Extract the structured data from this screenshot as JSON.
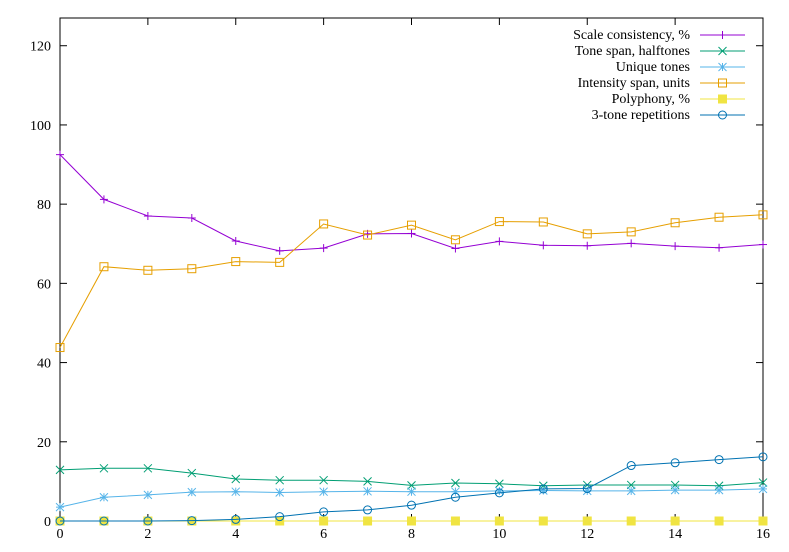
{
  "chart_data": {
    "type": "line",
    "title": "",
    "xlabel": "",
    "ylabel": "",
    "xlim": [
      0,
      16
    ],
    "ylim": [
      0,
      127
    ],
    "xticks": [
      0,
      2,
      4,
      6,
      8,
      10,
      12,
      14,
      16
    ],
    "yticks": [
      0,
      20,
      40,
      60,
      80,
      100,
      120
    ],
    "grid": false,
    "legend_position": "top-right",
    "x": [
      0,
      1,
      2,
      3,
      4,
      5,
      6,
      7,
      8,
      9,
      10,
      11,
      12,
      13,
      14,
      15,
      16
    ],
    "series": [
      {
        "name": "Scale consistency, %",
        "color": "#9400d3",
        "marker": "plus",
        "values": [
          92.5,
          81.2,
          77.0,
          76.5,
          70.7,
          68.2,
          68.9,
          72.5,
          72.6,
          68.8,
          70.6,
          69.6,
          69.5,
          70.1,
          69.4,
          69.0,
          69.8
        ]
      },
      {
        "name": "Tone span, halftones",
        "color": "#009e73",
        "marker": "cross",
        "values": [
          12.9,
          13.3,
          13.3,
          12.1,
          10.6,
          10.3,
          10.3,
          10.0,
          9.0,
          9.6,
          9.4,
          8.9,
          9.1,
          9.1,
          9.1,
          8.9,
          9.7
        ]
      },
      {
        "name": "Unique tones",
        "color": "#56b4e9",
        "marker": "star",
        "values": [
          3.5,
          6.0,
          6.6,
          7.3,
          7.4,
          7.2,
          7.4,
          7.5,
          7.4,
          7.4,
          7.6,
          7.7,
          7.6,
          7.6,
          7.8,
          7.8,
          8.1
        ]
      },
      {
        "name": "Intensity span, units",
        "color": "#e69f00",
        "marker": "box",
        "values": [
          43.8,
          64.2,
          63.3,
          63.7,
          65.5,
          65.3,
          75.0,
          72.2,
          74.7,
          71.0,
          75.6,
          75.5,
          72.5,
          73.0,
          75.3,
          76.7,
          77.3
        ]
      },
      {
        "name": "Polyphony, %",
        "color": "#f0e442",
        "marker": "filledbox",
        "values": [
          0,
          0,
          0,
          0,
          0,
          0,
          0,
          0,
          0,
          0,
          0,
          0,
          0,
          0,
          0,
          0,
          0
        ]
      },
      {
        "name": "3-tone repetitions",
        "color": "#0072b2",
        "marker": "circle",
        "values": [
          0,
          0,
          0,
          0.1,
          0.4,
          1.1,
          2.3,
          2.8,
          4.0,
          6.0,
          7.1,
          8.1,
          8.2,
          14.0,
          14.7,
          15.5,
          16.2
        ]
      }
    ]
  }
}
